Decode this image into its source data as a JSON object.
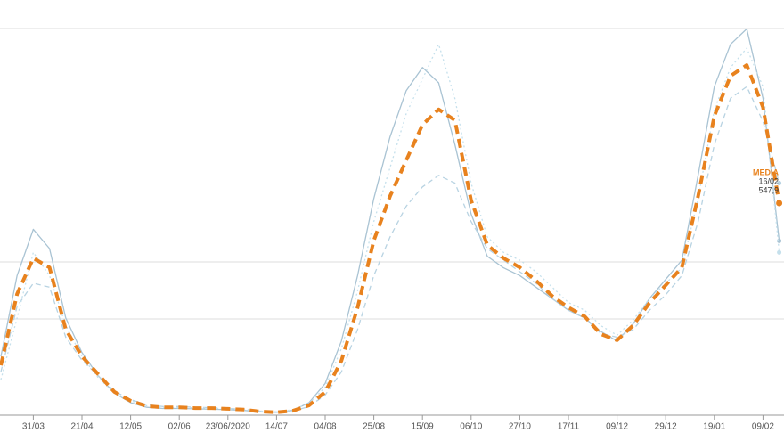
{
  "chart_data": {
    "type": "line",
    "categories": [
      null,
      null,
      "31/03",
      null,
      null,
      "21/04",
      null,
      null,
      "12/05",
      null,
      null,
      "02/06",
      null,
      null,
      "23/06/2020",
      null,
      null,
      "14/07",
      null,
      null,
      "04/08",
      null,
      null,
      "25/08",
      null,
      null,
      "15/09",
      null,
      null,
      "06/10",
      null,
      null,
      "27/10",
      null,
      null,
      "17/11",
      null,
      null,
      "09/12",
      null,
      null,
      "29/12",
      null,
      null,
      "19/01",
      null,
      null,
      "09/02",
      null
    ],
    "ylim": [
      0,
      1075
    ],
    "series": [
      {
        "color": "#a9c3d3",
        "dash": "solid",
        "values": [
          150,
          360,
          480,
          430,
          250,
          160,
          100,
          55,
          30,
          18,
          15,
          15,
          14,
          13,
          12,
          10,
          6,
          5,
          10,
          30,
          80,
          190,
          360,
          560,
          720,
          840,
          900,
          860,
          700,
          520,
          410,
          380,
          360,
          330,
          300,
          270,
          250,
          215,
          190,
          235,
          300,
          350,
          400,
          620,
          850,
          960,
          1000,
          820,
          450
        ]
      },
      {
        "color": "#b8d3e2",
        "dash": "dashed",
        "values": [
          110,
          280,
          340,
          330,
          200,
          140,
          100,
          60,
          38,
          25,
          20,
          20,
          18,
          17,
          15,
          13,
          8,
          6,
          8,
          20,
          50,
          110,
          220,
          360,
          460,
          540,
          590,
          620,
          600,
          500,
          430,
          400,
          370,
          340,
          300,
          270,
          250,
          210,
          200,
          220,
          270,
          310,
          360,
          500,
          700,
          820,
          850,
          760,
          600
        ]
      },
      {
        "color": "#c5e0ec",
        "dash": "dotted",
        "values": [
          90,
          250,
          420,
          360,
          230,
          150,
          95,
          55,
          35,
          22,
          18,
          17,
          17,
          16,
          14,
          12,
          8,
          6,
          12,
          28,
          70,
          170,
          320,
          500,
          640,
          780,
          870,
          960,
          820,
          600,
          460,
          420,
          400,
          370,
          330,
          290,
          270,
          230,
          205,
          245,
          300,
          340,
          380,
          560,
          790,
          900,
          950,
          850,
          420
        ]
      },
      {
        "name": "MEDIA",
        "color": "#e8821e",
        "dash": "dashed",
        "values": [
          127,
          312,
          405,
          381,
          220,
          150,
          104,
          58,
          35,
          21,
          18,
          18,
          16,
          16,
          14,
          12,
          7,
          5,
          9,
          23,
          58,
          139,
          277,
          451,
          566,
          659,
          751,
          791,
          763,
          555,
          439,
          405,
          381,
          347,
          307,
          277,
          254,
          208,
          192,
          231,
          289,
          335,
          381,
          566,
          774,
          878,
          906,
          797,
          547.9
        ],
        "value_labels": [
          null,
          null,
          null,
          null,
          null,
          null,
          null,
          null,
          null,
          null,
          null,
          null,
          null,
          null,
          null,
          null,
          null,
          null,
          null,
          null,
          null,
          null,
          null,
          null,
          null,
          null,
          null,
          null,
          null,
          null,
          null,
          null,
          null,
          null,
          null,
          null,
          null,
          null,
          null,
          null,
          null,
          null,
          null,
          null,
          null,
          null,
          null,
          null,
          "547,9"
        ]
      }
    ],
    "annotation": "16/02"
  }
}
